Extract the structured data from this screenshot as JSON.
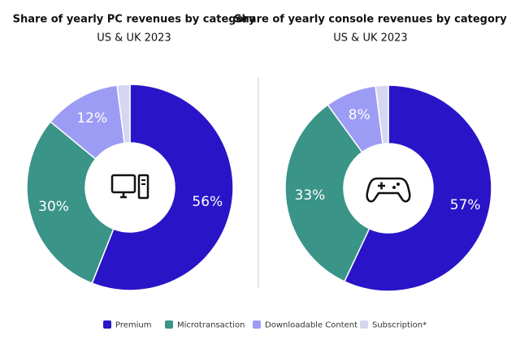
{
  "chart_data": [
    {
      "type": "donut",
      "title": "Share of yearly PC revenues by category",
      "subtitle": "US & UK 2023",
      "categories": [
        "Premium",
        "Microtransaction",
        "Downloadable Content",
        "Subscription*"
      ],
      "values": [
        56,
        30,
        12,
        2
      ],
      "value_labels": [
        "56%",
        "30%",
        "12%",
        null
      ],
      "colors": [
        "#2a14c8",
        "#3a9488",
        "#9d9cf5",
        "#d6d6f2"
      ]
    },
    {
      "type": "donut",
      "title": "Share of yearly console revenues by category",
      "subtitle": "US & UK 2023",
      "categories": [
        "Premium",
        "Microtransaction",
        "Downloadable Content",
        "Subscription*"
      ],
      "values": [
        57,
        33,
        8,
        2
      ],
      "value_labels": [
        "57%",
        "33%",
        "8%",
        null
      ],
      "colors": [
        "#2a14c8",
        "#3a9488",
        "#9d9cf5",
        "#d6d6f2"
      ]
    }
  ]
}
